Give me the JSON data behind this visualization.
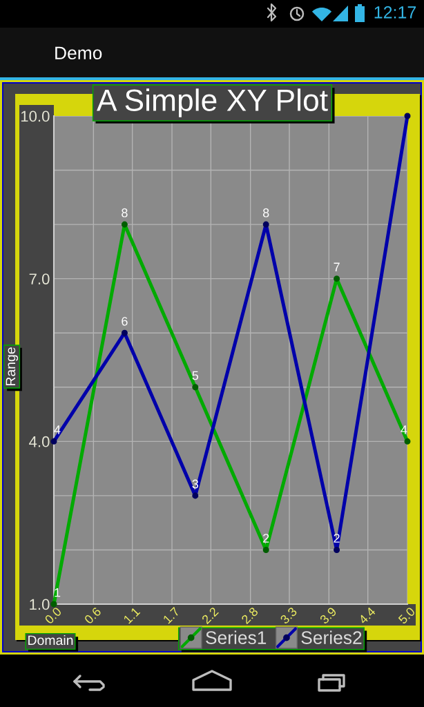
{
  "chart_data": {
    "type": "line",
    "title": "A Simple XY Plot",
    "xlabel": "Domain",
    "ylabel": "Range",
    "x": [
      0,
      1,
      2,
      3,
      4,
      5
    ],
    "series": [
      {
        "name": "Series1",
        "color": "#00aa00",
        "values": [
          1,
          8,
          5,
          2,
          7,
          4
        ],
        "value_labels": [
          "1",
          "8",
          "5",
          "2",
          "7",
          "4"
        ]
      },
      {
        "name": "Series2",
        "color": "#0000aa",
        "values": [
          4,
          6,
          3,
          8,
          2,
          10
        ],
        "value_labels": [
          "4",
          "6",
          "3",
          "8",
          "2",
          null
        ]
      }
    ],
    "xlim": [
      0,
      5
    ],
    "xticks": [
      {
        "value": 0,
        "label": "0.0"
      },
      {
        "value": 0.56,
        "label": "0.6"
      },
      {
        "value": 1.11,
        "label": "1.1"
      },
      {
        "value": 1.67,
        "label": "1.7"
      },
      {
        "value": 2.22,
        "label": "2.2"
      },
      {
        "value": 2.78,
        "label": "2.8"
      },
      {
        "value": 3.33,
        "label": "3.3"
      },
      {
        "value": 3.89,
        "label": "3.9"
      },
      {
        "value": 4.44,
        "label": "4.4"
      },
      {
        "value": 5,
        "label": "5.0"
      }
    ],
    "ylim": [
      1,
      10
    ],
    "yticks": [
      {
        "value": 1,
        "label": "1.0"
      },
      {
        "value": 2,
        "label": null
      },
      {
        "value": 3,
        "label": null
      },
      {
        "value": 4,
        "label": "4.0"
      },
      {
        "value": 5,
        "label": null
      },
      {
        "value": 6,
        "label": null
      },
      {
        "value": 7,
        "label": "7.0"
      },
      {
        "value": 8,
        "label": null
      },
      {
        "value": 9,
        "label": null
      },
      {
        "value": 10,
        "label": "10.0"
      }
    ],
    "grid": true,
    "legend": "bottom",
    "marker": "circle",
    "line_style": "solid",
    "annotations": [
      "12:17",
      "Demo"
    ]
  }
}
